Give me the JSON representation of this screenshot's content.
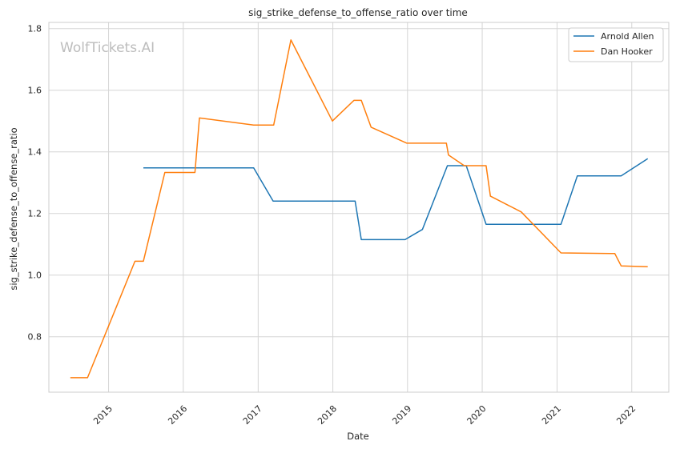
{
  "chart_data": {
    "type": "line",
    "title": "sig_strike_defense_to_offense_ratio over time",
    "xlabel": "Date",
    "ylabel": "sig_strike_defense_to_offense_ratio",
    "watermark": "WolfTickets.AI",
    "xlim": [
      "2014-03-15",
      "2022-07-01"
    ],
    "ylim": [
      0.62,
      1.82
    ],
    "x_ticks": [
      "2015-01-01",
      "2016-01-01",
      "2017-01-01",
      "2018-01-01",
      "2019-01-01",
      "2020-01-01",
      "2021-01-01",
      "2022-01-01"
    ],
    "x_tick_labels": [
      "2015",
      "2016",
      "2017",
      "2018",
      "2019",
      "2020",
      "2021",
      "2022"
    ],
    "y_ticks": [
      0.8,
      1.0,
      1.2,
      1.4,
      1.6,
      1.8
    ],
    "y_tick_labels": [
      "0.8",
      "1.0",
      "1.2",
      "1.4",
      "1.6",
      "1.8"
    ],
    "grid": true,
    "legend_position": "top-right",
    "series": [
      {
        "name": "Arnold Allen",
        "color": "#1f77b4",
        "points": [
          [
            "2015-06-20",
            1.348
          ],
          [
            "2016-12-10",
            1.348
          ],
          [
            "2017-03-15",
            1.24
          ],
          [
            "2018-04-20",
            1.24
          ],
          [
            "2018-05-20",
            1.115
          ],
          [
            "2018-12-20",
            1.115
          ],
          [
            "2019-03-15",
            1.148
          ],
          [
            "2019-07-15",
            1.355
          ],
          [
            "2019-10-15",
            1.355
          ],
          [
            "2020-01-20",
            1.165
          ],
          [
            "2021-01-20",
            1.165
          ],
          [
            "2021-04-10",
            1.322
          ],
          [
            "2021-11-10",
            1.322
          ],
          [
            "2022-03-20",
            1.378
          ]
        ]
      },
      {
        "name": "Dan Hooker",
        "color": "#ff7f0e",
        "points": [
          [
            "2014-06-28",
            0.667
          ],
          [
            "2014-09-20",
            0.667
          ],
          [
            "2015-05-10",
            1.045
          ],
          [
            "2015-06-20",
            1.045
          ],
          [
            "2015-10-03",
            1.333
          ],
          [
            "2016-02-27",
            1.333
          ],
          [
            "2016-03-20",
            1.51
          ],
          [
            "2016-12-10",
            1.487
          ],
          [
            "2017-03-18",
            1.487
          ],
          [
            "2017-06-10",
            1.763
          ],
          [
            "2017-12-30",
            1.5
          ],
          [
            "2018-04-14",
            1.567
          ],
          [
            "2018-05-20",
            1.567
          ],
          [
            "2018-07-07",
            1.48
          ],
          [
            "2018-12-29",
            1.428
          ],
          [
            "2019-07-10",
            1.428
          ],
          [
            "2019-07-20",
            1.39
          ],
          [
            "2019-10-05",
            1.355
          ],
          [
            "2020-01-20",
            1.355
          ],
          [
            "2020-02-10",
            1.256
          ],
          [
            "2020-07-10",
            1.205
          ],
          [
            "2021-01-20",
            1.072
          ],
          [
            "2021-10-10",
            1.07
          ],
          [
            "2021-11-10",
            1.03
          ],
          [
            "2022-03-20",
            1.027
          ]
        ]
      }
    ]
  }
}
